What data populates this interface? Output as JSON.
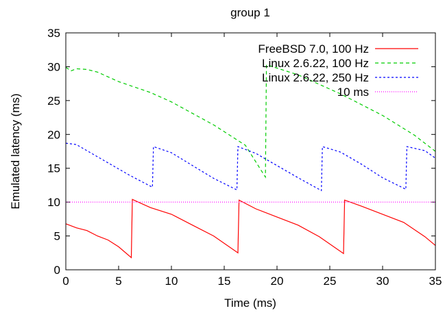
{
  "chart_data": {
    "type": "line",
    "title": "group 1",
    "xlabel": "Time (ms)",
    "ylabel": "Emulated latency (ms)",
    "xlim": [
      0,
      35
    ],
    "ylim": [
      0,
      35
    ],
    "xticks": [
      "0",
      "5",
      "10",
      "15",
      "20",
      "25",
      "30",
      "35"
    ],
    "yticks": [
      "0",
      "5",
      "10",
      "15",
      "20",
      "25",
      "30",
      "35"
    ],
    "grid": false,
    "legend_position": "top-right",
    "series": [
      {
        "name": "FreeBSD 7.0, 100 Hz",
        "color": "#ff0000",
        "dash": "solid",
        "points": [
          [
            0,
            6.8
          ],
          [
            1,
            6.2
          ],
          [
            2,
            5.8
          ],
          [
            3,
            5.0
          ],
          [
            4,
            4.4
          ],
          [
            5,
            3.4
          ],
          [
            6.2,
            1.8
          ],
          [
            6.3,
            10.4
          ],
          [
            8,
            9.2
          ],
          [
            10,
            8.2
          ],
          [
            12,
            6.6
          ],
          [
            14,
            5.0
          ],
          [
            16.3,
            2.5
          ],
          [
            16.4,
            10.3
          ],
          [
            18,
            9.0
          ],
          [
            20,
            7.8
          ],
          [
            22,
            6.6
          ],
          [
            24,
            4.9
          ],
          [
            26.3,
            2.4
          ],
          [
            26.4,
            10.3
          ],
          [
            28,
            9.4
          ],
          [
            30,
            8.2
          ],
          [
            32,
            7.0
          ],
          [
            34,
            4.9
          ],
          [
            35,
            3.6
          ]
        ]
      },
      {
        "name": "Linux 2.6.22, 100 Hz",
        "color": "#00cc00",
        "dash": "5,4",
        "points": [
          [
            0,
            29.9
          ],
          [
            0.5,
            29.4
          ],
          [
            1,
            29.7
          ],
          [
            2,
            29.6
          ],
          [
            3,
            29.2
          ],
          [
            5,
            27.8
          ],
          [
            8,
            26.2
          ],
          [
            10,
            24.8
          ],
          [
            14,
            21.4
          ],
          [
            17,
            18.4
          ],
          [
            18.9,
            13.7
          ],
          [
            19,
            30.3
          ],
          [
            22,
            28.8
          ],
          [
            26,
            26.0
          ],
          [
            30,
            22.8
          ],
          [
            33,
            19.9
          ],
          [
            35,
            17.5
          ]
        ]
      },
      {
        "name": "Linux 2.6.22, 250 Hz",
        "color": "#0000ff",
        "dash": "3,3",
        "points": [
          [
            0,
            18.7
          ],
          [
            1,
            18.5
          ],
          [
            2,
            17.6
          ],
          [
            4,
            15.8
          ],
          [
            6,
            14.0
          ],
          [
            8.2,
            12.2
          ],
          [
            8.3,
            18.2
          ],
          [
            10,
            17.3
          ],
          [
            12,
            15.4
          ],
          [
            14,
            13.5
          ],
          [
            16.2,
            11.8
          ],
          [
            16.3,
            18.2
          ],
          [
            18,
            17.2
          ],
          [
            20,
            15.4
          ],
          [
            22,
            13.6
          ],
          [
            24.2,
            11.7
          ],
          [
            24.3,
            18.2
          ],
          [
            26,
            17.4
          ],
          [
            28,
            15.6
          ],
          [
            30,
            13.6
          ],
          [
            32.2,
            11.9
          ],
          [
            32.3,
            18.2
          ],
          [
            34,
            17.6
          ],
          [
            35,
            16.5
          ]
        ]
      },
      {
        "name": "10 ms",
        "color": "#ff00ff",
        "dash": "1,2",
        "points": [
          [
            0,
            10
          ],
          [
            35,
            10
          ]
        ]
      }
    ]
  }
}
